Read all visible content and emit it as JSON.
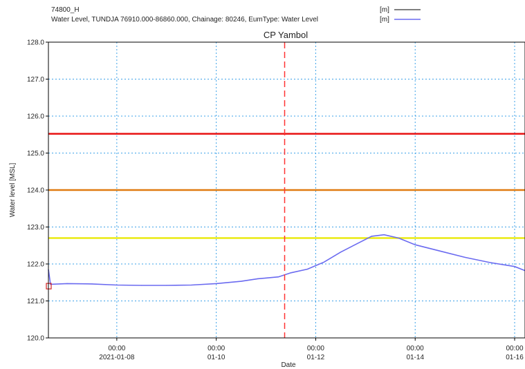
{
  "legend": {
    "entries": [
      {
        "label": "74800_H",
        "unit": "[m]",
        "color": "#555555"
      },
      {
        "label": "Water Level, TUNDJA 76910.000-86860.000, Chainage: 80246, EumType: Water Level",
        "unit": "[m]",
        "color": "#6a6af0"
      }
    ]
  },
  "chart_data": {
    "type": "line",
    "title": "CP Yambol",
    "xlabel": "Date",
    "ylabel": "Water level [MSL]",
    "x_range": [
      "2021-01-06T15:00",
      "2021-01-16T05:00"
    ],
    "ylim": [
      120.0,
      128.0
    ],
    "y_ticks": [
      "120.0",
      "121.0",
      "122.0",
      "123.0",
      "124.0",
      "125.0",
      "126.0",
      "127.0",
      "128.0"
    ],
    "x_ticks": [
      {
        "x": "2021-01-08T00:00",
        "time": "00:00",
        "date": "2021-01-08"
      },
      {
        "x": "2021-01-10T00:00",
        "time": "00:00",
        "date": "01-10"
      },
      {
        "x": "2021-01-12T00:00",
        "time": "00:00",
        "date": "01-12"
      },
      {
        "x": "2021-01-14T00:00",
        "time": "00:00",
        "date": "01-14"
      },
      {
        "x": "2021-01-16T00:00",
        "time": "00:00",
        "date": "01-16"
      }
    ],
    "grid": true,
    "legend_position": "top-right",
    "vertical_marker": {
      "x": "2021-01-11T09:00",
      "color": "#ff3333"
    },
    "threshold_lines": [
      {
        "value": 125.52,
        "color": "#e81010"
      },
      {
        "value": 124.0,
        "color": "#e07a10"
      },
      {
        "value": 122.7,
        "color": "#eaea10"
      }
    ],
    "observed_marker": {
      "x": "2021-01-06T15:00",
      "y": 121.4,
      "color": "#d02020"
    },
    "series": [
      {
        "color": "#6a6af0",
        "points": [
          [
            "2021-01-06T15:00",
            121.85
          ],
          [
            "2021-01-06T16:00",
            121.45
          ],
          [
            "2021-01-07T00:00",
            121.47
          ],
          [
            "2021-01-07T12:00",
            121.46
          ],
          [
            "2021-01-08T00:00",
            121.43
          ],
          [
            "2021-01-08T12:00",
            121.42
          ],
          [
            "2021-01-09T00:00",
            121.42
          ],
          [
            "2021-01-09T12:00",
            121.43
          ],
          [
            "2021-01-10T00:00",
            121.47
          ],
          [
            "2021-01-10T12:00",
            121.53
          ],
          [
            "2021-01-10T20:00",
            121.6
          ],
          [
            "2021-01-11T06:00",
            121.65
          ],
          [
            "2021-01-11T12:00",
            121.76
          ],
          [
            "2021-01-11T20:00",
            121.86
          ],
          [
            "2021-01-12T04:00",
            122.05
          ],
          [
            "2021-01-12T12:00",
            122.32
          ],
          [
            "2021-01-12T20:00",
            122.55
          ],
          [
            "2021-01-13T03:00",
            122.75
          ],
          [
            "2021-01-13T09:00",
            122.79
          ],
          [
            "2021-01-13T16:00",
            122.7
          ],
          [
            "2021-01-14T00:00",
            122.52
          ],
          [
            "2021-01-14T12:00",
            122.35
          ],
          [
            "2021-01-15T00:00",
            122.18
          ],
          [
            "2021-01-15T12:00",
            122.04
          ],
          [
            "2021-01-16T00:00",
            121.93
          ],
          [
            "2021-01-16T05:00",
            121.82
          ]
        ]
      }
    ]
  }
}
